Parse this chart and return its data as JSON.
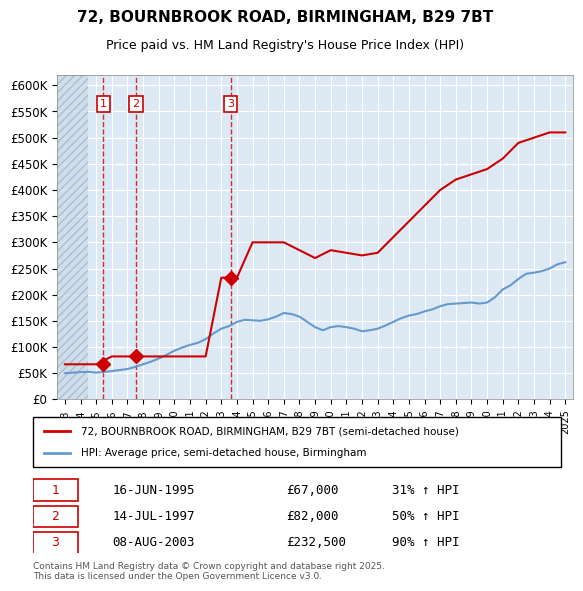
{
  "title_line1": "72, BOURNBROOK ROAD, BIRMINGHAM, B29 7BT",
  "title_line2": "Price paid vs. HM Land Registry's House Price Index (HPI)",
  "bg_color": "#dce9f5",
  "plot_bg_color": "#dce9f5",
  "hatch_color": "#c0c0c0",
  "ylim": [
    0,
    620000
  ],
  "yticks": [
    0,
    50000,
    100000,
    150000,
    200000,
    250000,
    300000,
    350000,
    400000,
    450000,
    500000,
    550000,
    600000
  ],
  "ytick_labels": [
    "£0",
    "£50K",
    "£100K",
    "£150K",
    "£200K",
    "£250K",
    "£300K",
    "£350K",
    "£400K",
    "£450K",
    "£500K",
    "£550K",
    "£600K"
  ],
  "xlim_start": 1992.5,
  "xlim_end": 2025.5,
  "hpi_x": [
    1993,
    1993.5,
    1994,
    1994.5,
    1995,
    1995.5,
    1996,
    1996.5,
    1997,
    1997.5,
    1998,
    1998.5,
    1999,
    1999.5,
    2000,
    2000.5,
    2001,
    2001.5,
    2002,
    2002.5,
    2003,
    2003.5,
    2004,
    2004.5,
    2005,
    2005.5,
    2006,
    2006.5,
    2007,
    2007.5,
    2008,
    2008.5,
    2009,
    2009.5,
    2010,
    2010.5,
    2011,
    2011.5,
    2012,
    2012.5,
    2013,
    2013.5,
    2014,
    2014.5,
    2015,
    2015.5,
    2016,
    2016.5,
    2017,
    2017.5,
    2018,
    2018.5,
    2019,
    2019.5,
    2020,
    2020.5,
    2021,
    2021.5,
    2022,
    2022.5,
    2023,
    2023.5,
    2024,
    2024.5,
    2025
  ],
  "hpi_y": [
    50000,
    51000,
    52000,
    52500,
    51000,
    52500,
    54000,
    56000,
    58000,
    62000,
    67000,
    72000,
    78000,
    85000,
    93000,
    99000,
    104000,
    108000,
    115000,
    126000,
    135000,
    140000,
    148000,
    152000,
    151000,
    150000,
    153000,
    158000,
    165000,
    163000,
    158000,
    148000,
    138000,
    132000,
    138000,
    140000,
    138000,
    135000,
    130000,
    132000,
    135000,
    141000,
    148000,
    155000,
    160000,
    163000,
    168000,
    172000,
    178000,
    182000,
    183000,
    184000,
    185000,
    183000,
    185000,
    195000,
    210000,
    218000,
    230000,
    240000,
    242000,
    245000,
    250000,
    258000,
    262000
  ],
  "property_x": [
    1993,
    1994,
    1995,
    1996,
    1997,
    1998,
    1999,
    2000,
    2001,
    2002,
    2003,
    2004,
    2005,
    2006,
    2007,
    2008,
    2009,
    2010,
    2011,
    2012,
    2013,
    2014,
    2015,
    2016,
    2017,
    2018,
    2019,
    2020,
    2021,
    2022,
    2023,
    2024,
    2025
  ],
  "property_y_base": [
    67000,
    67000,
    67000,
    82000,
    82000,
    82000,
    82000,
    82000,
    82000,
    82000,
    232500,
    232500,
    300000,
    300000,
    300000,
    285000,
    270000,
    285000,
    280000,
    275000,
    280000,
    310000,
    340000,
    370000,
    400000,
    420000,
    430000,
    440000,
    460000,
    490000,
    500000,
    510000,
    510000
  ],
  "sale1_x": 1995.46,
  "sale1_y": 67000,
  "sale1_label": "1",
  "sale1_date": "16-JUN-1995",
  "sale1_price": "£67,000",
  "sale1_hpi": "31% ↑ HPI",
  "sale2_x": 1997.54,
  "sale2_y": 82000,
  "sale2_label": "2",
  "sale2_date": "14-JUL-1997",
  "sale2_price": "£82,000",
  "sale2_hpi": "50% ↑ HPI",
  "sale3_x": 2003.6,
  "sale3_y": 232500,
  "sale3_label": "3",
  "sale3_date": "08-AUG-2003",
  "sale3_price": "£232,500",
  "sale3_hpi": "90% ↑ HPI",
  "red_color": "#cc0000",
  "blue_color": "#6699cc",
  "legend_label_red": "72, BOURNBROOK ROAD, BIRMINGHAM, B29 7BT (semi-detached house)",
  "legend_label_blue": "HPI: Average price, semi-detached house, Birmingham",
  "footer_text": "Contains HM Land Registry data © Crown copyright and database right 2025.\nThis data is licensed under the Open Government Licence v3.0.",
  "hatch_end_x": 1994.5
}
